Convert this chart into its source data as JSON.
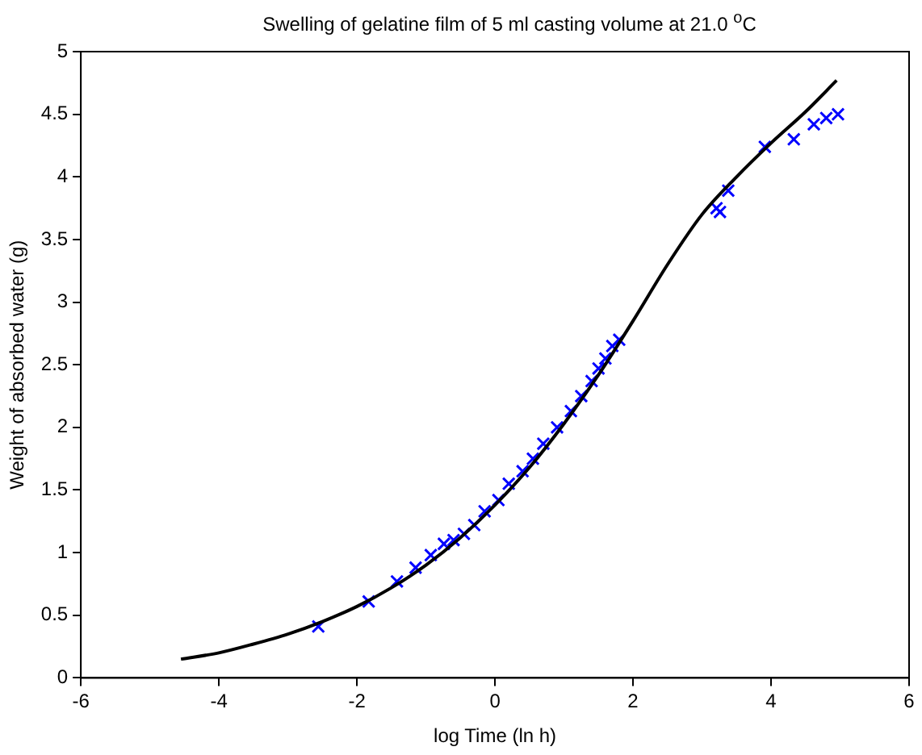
{
  "chart_data": {
    "type": "scatter",
    "title": "Swelling of gelatine film of 5 ml casting volume at 21.0 $^{o}$C",
    "xlabel": "log Time (ln h)",
    "ylabel": "Weight of absorbed water (g)",
    "xlim": [
      -6,
      6
    ],
    "xticks": [
      -6,
      -4,
      -2,
      0,
      2,
      4,
      6
    ],
    "ylim": [
      0,
      5
    ],
    "yticks": [
      0,
      0.5,
      1,
      1.5,
      2,
      2.5,
      3,
      3.5,
      4,
      4.5,
      5
    ],
    "grid": false,
    "legend": false,
    "series": [
      {
        "type": "line",
        "color": "#000000",
        "marker": "none",
        "line_style": "solid",
        "x": [
          -4.55,
          -4,
          -3.5,
          -3,
          -2.5,
          -2,
          -1.5,
          -1,
          -0.5,
          0,
          0.5,
          1,
          1.5,
          2,
          2.5,
          3,
          3.5,
          4,
          4.5,
          4.95
        ],
        "values": [
          0.15,
          0.2,
          0.27,
          0.35,
          0.45,
          0.57,
          0.72,
          0.9,
          1.12,
          1.38,
          1.68,
          2.03,
          2.42,
          2.85,
          3.3,
          3.7,
          4.0,
          4.27,
          4.52,
          4.77
        ]
      },
      {
        "color": "#0000ff",
        "marker": "cross",
        "x": [
          -2.56,
          -1.83,
          -1.42,
          -1.15,
          -0.93,
          -0.74,
          -0.6,
          -0.45,
          -0.3,
          -0.15,
          0.05,
          0.2,
          0.4,
          0.55,
          0.7,
          0.9,
          1.1,
          1.25,
          1.4,
          1.5,
          1.6,
          1.7,
          1.8,
          3.21,
          3.26,
          3.38,
          3.91,
          4.33,
          4.62,
          4.8,
          4.97
        ],
        "values": [
          0.41,
          0.61,
          0.77,
          0.88,
          0.98,
          1.07,
          1.1,
          1.15,
          1.22,
          1.33,
          1.42,
          1.55,
          1.65,
          1.75,
          1.87,
          2.0,
          2.13,
          2.25,
          2.37,
          2.47,
          2.55,
          2.65,
          2.7,
          3.75,
          3.72,
          3.89,
          4.24,
          4.3,
          4.42,
          4.47,
          4.5
        ]
      }
    ]
  }
}
